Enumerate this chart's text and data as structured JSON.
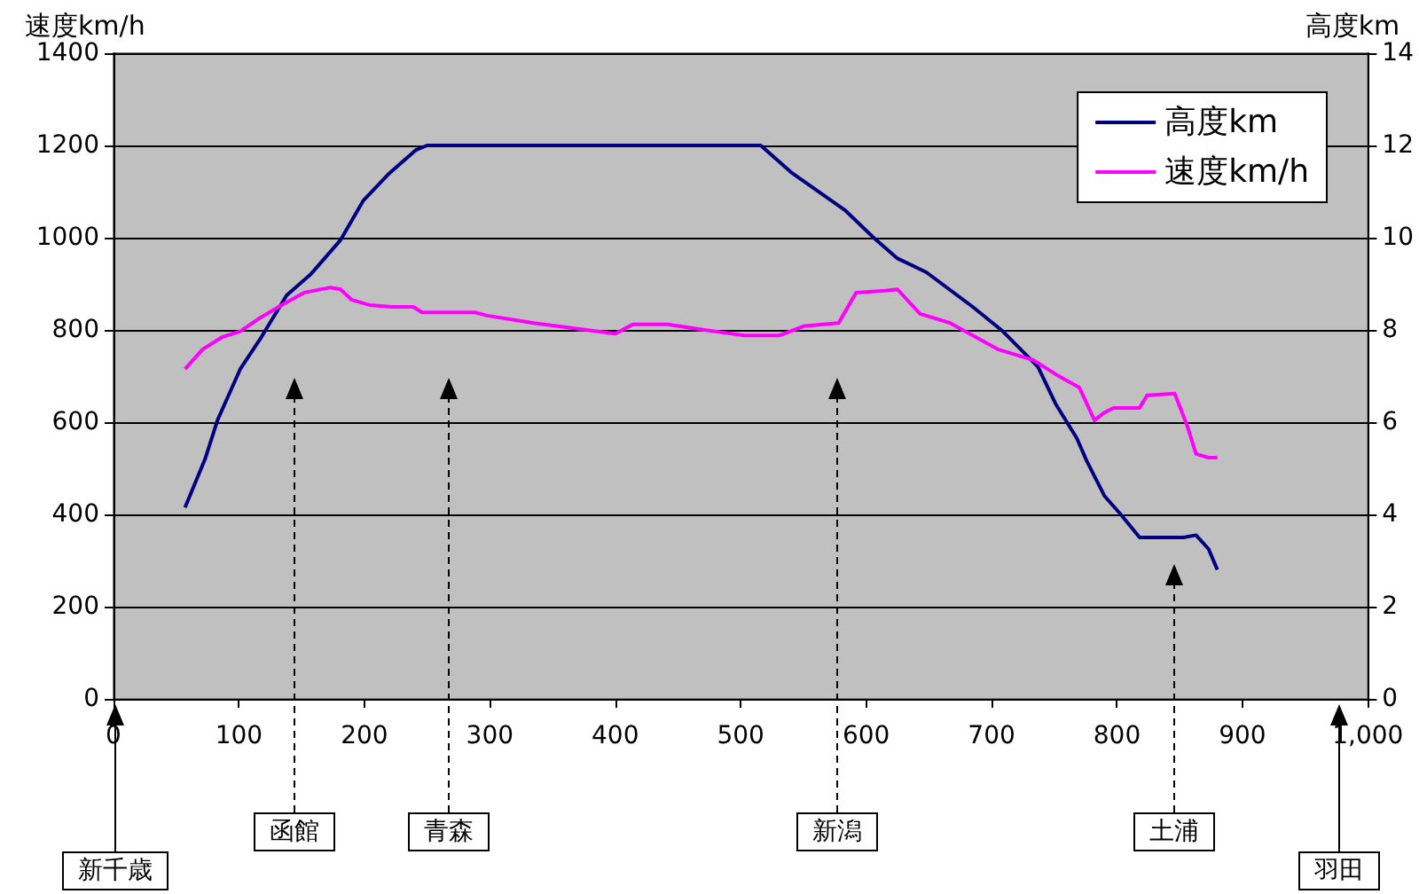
{
  "chart_data": {
    "type": "line",
    "ylabel": "速度km/h",
    "y2label": "高度km",
    "xlim": [
      0,
      1000
    ],
    "xticks": [
      0,
      100,
      200,
      300,
      400,
      500,
      600,
      700,
      800,
      900,
      {
        "value": 1000,
        "label": "1,000"
      }
    ],
    "ylim": [
      0,
      1400
    ],
    "yticks": [
      0,
      200,
      400,
      600,
      800,
      1000,
      1200,
      1400
    ],
    "y2lim": [
      0,
      14
    ],
    "y2ticks": [
      0,
      2,
      4,
      6,
      8,
      10,
      12,
      14
    ],
    "grid": "y",
    "legend": "top right",
    "series": [
      {
        "name": "高度km",
        "color": "#000080",
        "axis": "y2",
        "x": [
          57,
          73,
          83,
          101,
          118,
          138,
          157,
          181,
          199,
          220,
          241,
          250,
          300,
          350,
          400,
          450,
          516,
          541,
          583,
          606,
          625,
          648,
          685,
          709,
          737,
          751,
          768,
          776,
          790,
          803,
          818,
          853,
          863,
          873,
          880
        ],
        "values": [
          4.15,
          5.2,
          6.05,
          7.15,
          7.85,
          8.75,
          9.2,
          9.95,
          10.8,
          11.4,
          11.9,
          12,
          12,
          12,
          12,
          12,
          12,
          11.4,
          10.6,
          10,
          9.55,
          9.25,
          8.5,
          7.97,
          7.2,
          6.4,
          5.65,
          5.15,
          4.4,
          4,
          3.5,
          3.5,
          3.55,
          3.25,
          2.8
        ]
      },
      {
        "name": "速度km/h",
        "color": "#ff00ff",
        "x": [
          57,
          71,
          87,
          101,
          115,
          134,
          152,
          173,
          181,
          190,
          204,
          222,
          239,
          246,
          288,
          298,
          335,
          377,
          400,
          414,
          442,
          471,
          503,
          531,
          550,
          578,
          592,
          615,
          625,
          643,
          667,
          705,
          733,
          751,
          770,
          782,
          789,
          797,
          818,
          824,
          846,
          856,
          863,
          873,
          880
        ],
        "values": [
          715,
          758,
          785,
          797,
          823,
          854,
          881,
          892,
          888,
          865,
          854,
          850,
          850,
          838,
          838,
          831,
          815,
          800,
          792,
          812,
          812,
          800,
          788,
          788,
          808,
          815,
          881,
          885,
          888,
          835,
          815,
          758,
          735,
          704,
          675,
          604,
          619,
          631,
          631,
          658,
          662,
          592,
          531,
          523,
          523
        ]
      }
    ],
    "annotations": [
      "新千歳",
      "函館",
      "青森",
      "新潟",
      "土浦",
      "羽田"
    ]
  }
}
